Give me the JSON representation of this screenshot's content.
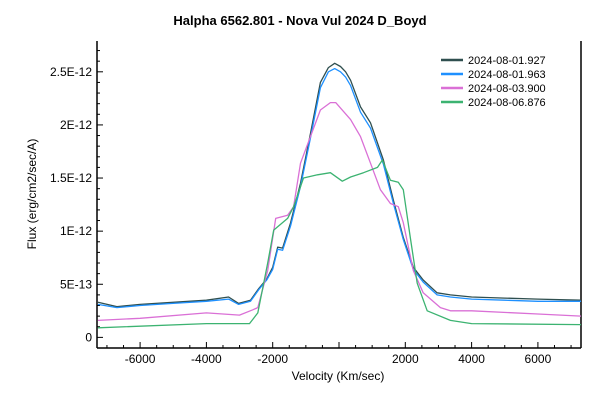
{
  "chart_data": {
    "type": "line",
    "title": "Halpha 6562.801 - Nova Vul 2024   D_Boyd",
    "xlabel": "Velocity (Km/sec)",
    "ylabel": "Flux (erg/cm2/sec/A)",
    "xlim": [
      -7300,
      7300
    ],
    "ylim": [
      -1e-13,
      2.79e-12
    ],
    "x_ticks": [
      -6000,
      -4000,
      -2000,
      2000,
      4000,
      6000
    ],
    "x_tick_labels": [
      "-6000",
      "-4000",
      "-2000",
      "2000",
      "4000",
      "6000"
    ],
    "y_ticks": [
      0,
      5e-13,
      1e-12,
      1.5e-12,
      2e-12,
      2.5e-12
    ],
    "y_tick_labels": [
      "0",
      "5E-13",
      "1E-12",
      "1.5E-12",
      "2E-12",
      "2.5E-12"
    ],
    "grid": false,
    "legend_position": "top-right",
    "series": [
      {
        "name": "2024-08-01.927",
        "color": "#2f4f4f",
        "x": [
          -7270,
          -6700,
          -6000,
          -5000,
          -4000,
          -3330,
          -3030,
          -2670,
          -2420,
          -2180,
          -2000,
          -1850,
          -1700,
          -1460,
          -1160,
          -860,
          -560,
          -320,
          -130,
          45,
          200,
          350,
          650,
          950,
          1340,
          1640,
          1940,
          2240,
          2540,
          2960,
          3360,
          4000,
          5000,
          6000,
          7300
        ],
        "y": [
          3.3e-13,
          2.9e-13,
          3.1e-13,
          3.3e-13,
          3.5e-13,
          3.8e-13,
          3.2e-13,
          3.5e-13,
          4.6e-13,
          5.5e-13,
          6.6e-13,
          8.5e-13,
          8.4e-13,
          1.08e-12,
          1.45e-12,
          1.92e-12,
          2.4e-12,
          2.54e-12,
          2.58e-12,
          2.55e-12,
          2.5e-12,
          2.42e-12,
          2.17e-12,
          2.02e-12,
          1.67e-12,
          1.29e-12,
          9.4e-13,
          6.6e-13,
          5.4e-13,
          4.2e-13,
          4e-13,
          3.8e-13,
          3.7e-13,
          3.6e-13,
          3.5e-13
        ]
      },
      {
        "name": "2024-08-01.963",
        "color": "#1e90ff",
        "x": [
          -7270,
          -6700,
          -6000,
          -5000,
          -4000,
          -3330,
          -3030,
          -2670,
          -2420,
          -2180,
          -2000,
          -1850,
          -1700,
          -1460,
          -1160,
          -860,
          -560,
          -320,
          -130,
          45,
          200,
          350,
          650,
          950,
          1340,
          1640,
          1940,
          2240,
          2540,
          2960,
          3360,
          4000,
          5000,
          6000,
          7300
        ],
        "y": [
          3.1e-13,
          2.8e-13,
          3e-13,
          3.2e-13,
          3.4e-13,
          3.6e-13,
          3.1e-13,
          3.4e-13,
          4.5e-13,
          5.4e-13,
          6.4e-13,
          8.3e-13,
          8.2e-13,
          1.05e-12,
          1.42e-12,
          1.88e-12,
          2.35e-12,
          2.5e-12,
          2.53e-12,
          2.5e-12,
          2.45e-12,
          2.37e-12,
          2.12e-12,
          1.97e-12,
          1.63e-12,
          1.26e-12,
          9.2e-13,
          6.4e-13,
          5.2e-13,
          4e-13,
          3.8e-13,
          3.6e-13,
          3.5e-13,
          3.4e-13,
          3.4e-13
        ]
      },
      {
        "name": "2024-08-03.900",
        "color": "#da70d6",
        "x": [
          -7270,
          -6000,
          -4000,
          -3000,
          -2600,
          -2450,
          -2150,
          -1910,
          -1550,
          -1370,
          -1160,
          -560,
          -260,
          -100,
          350,
          650,
          950,
          1250,
          1550,
          1790,
          1940,
          2240,
          2540,
          3060,
          3360,
          4000,
          6000,
          7300
        ],
        "y": [
          1.6e-13,
          1.8e-13,
          2.3e-13,
          2.1e-13,
          2.6e-13,
          2.8e-13,
          6.3e-13,
          1.12e-12,
          1.15e-12,
          1.23e-12,
          1.64e-12,
          2.14e-12,
          2.21e-12,
          2.21e-12,
          2.05e-12,
          1.89e-12,
          1.64e-12,
          1.39e-12,
          1.26e-12,
          1.23e-12,
          1.08e-12,
          6.3e-13,
          4.2e-13,
          2.8e-13,
          2.5e-13,
          2.5e-13,
          2.2e-13,
          2e-13
        ]
      },
      {
        "name": "2024-08-06.876",
        "color": "#3cb371",
        "x": [
          -7270,
          -4000,
          -2700,
          -2450,
          -2150,
          -1970,
          -1550,
          -1370,
          -1070,
          -650,
          -260,
          100,
          350,
          740,
          1160,
          1310,
          1550,
          1790,
          1940,
          2150,
          2360,
          2660,
          3360,
          4000,
          7300
        ],
        "y": [
          9e-14,
          1.3e-13,
          1.3e-13,
          2.3e-13,
          7e-13,
          1.01e-12,
          1.12e-12,
          1.23e-12,
          1.5e-12,
          1.53e-12,
          1.55e-12,
          1.47e-12,
          1.51e-12,
          1.55e-12,
          1.6e-12,
          1.67e-12,
          1.48e-12,
          1.46e-12,
          1.39e-12,
          9.4e-13,
          5.1e-13,
          2.5e-13,
          1.6e-13,
          1.3e-13,
          1.2e-13
        ]
      }
    ]
  }
}
